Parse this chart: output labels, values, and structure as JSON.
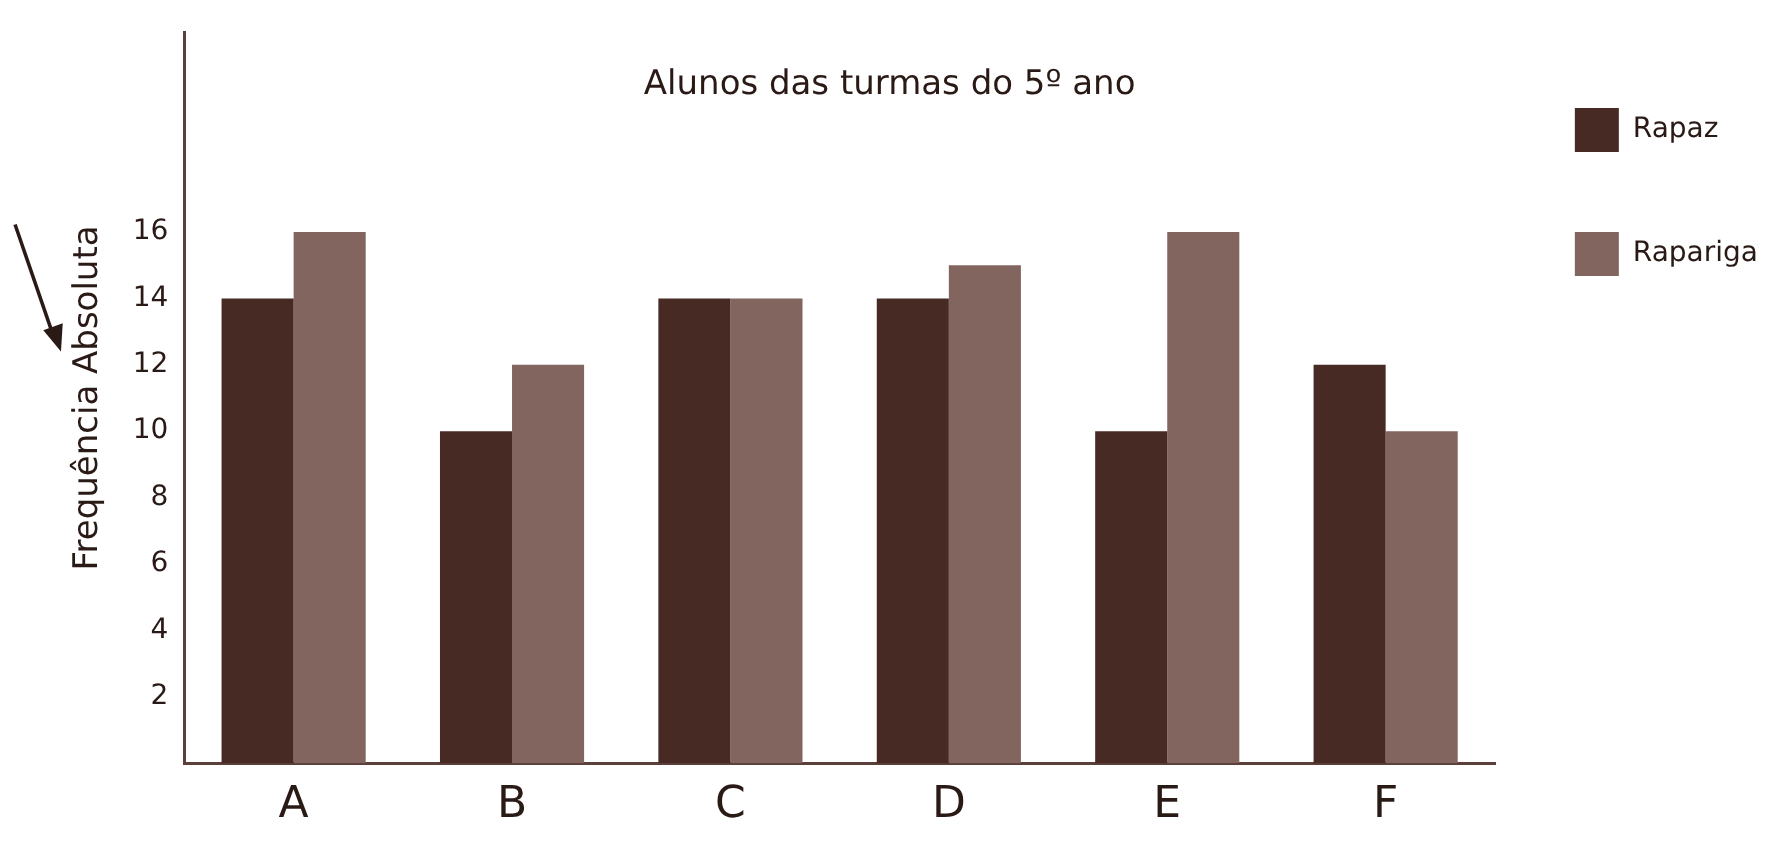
{
  "chart_data": {
    "type": "bar",
    "title": "Alunos das turmas do 5º ano",
    "ylabel": "Frequência Absoluta",
    "categories": [
      "A",
      "B",
      "C",
      "D",
      "E",
      "F"
    ],
    "series": [
      {
        "name": "Rapaz",
        "color": "#472a24",
        "values": [
          14,
          10,
          14,
          14,
          10,
          12
        ]
      },
      {
        "name": "Rapariga",
        "color": "#82655f",
        "values": [
          16,
          12,
          14,
          15,
          16,
          10
        ]
      }
    ],
    "ylim": [
      0,
      22
    ],
    "yticks": [
      2,
      4,
      6,
      8,
      10,
      12,
      14,
      16
    ],
    "grid": false,
    "legend": "right"
  }
}
